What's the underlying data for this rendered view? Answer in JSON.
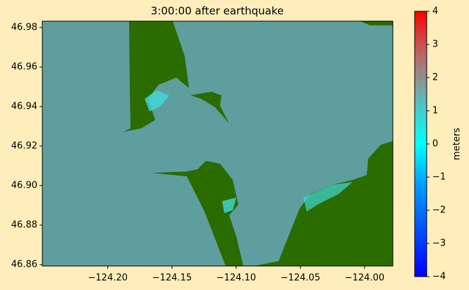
{
  "chart_data": {
    "type": "image",
    "title": "3:00:00 after earthquake",
    "xlim": [
      -124.251,
      -123.978
    ],
    "ylim": [
      46.8593,
      46.9832
    ],
    "xticks": [
      {
        "value": -124.2,
        "label": "−124.20"
      },
      {
        "value": -124.15,
        "label": "−124.15"
      },
      {
        "value": -124.1,
        "label": "−124.10"
      },
      {
        "value": -124.05,
        "label": "−124.05"
      },
      {
        "value": -124.0,
        "label": "−124.00"
      }
    ],
    "yticks": [
      46.98,
      46.96,
      46.94,
      {
        "value": 46.92,
        "label": "46.92"
      },
      {
        "value": 46.9,
        "label": "46.90"
      },
      46.88,
      46.86
    ],
    "colorbar": {
      "label": "meters",
      "lim": [
        -4,
        4
      ],
      "ticks": [
        4,
        3,
        2,
        1,
        0,
        {
          "value": -1,
          "label": "−1"
        },
        {
          "value": -2,
          "label": "−2"
        },
        {
          "value": -3,
          "label": "−3"
        },
        {
          "value": -4,
          "label": "−4"
        }
      ]
    }
  }
}
